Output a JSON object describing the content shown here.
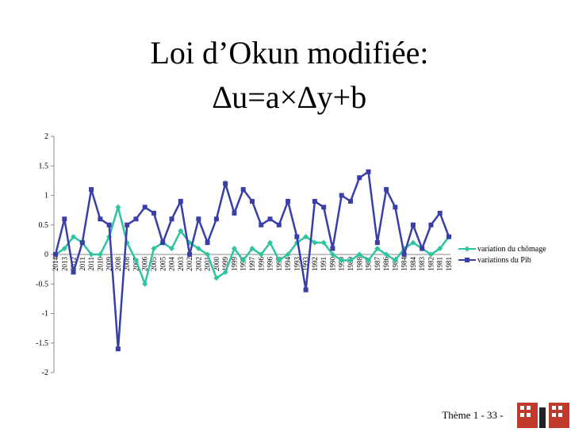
{
  "footer": "Thème 1 - 33 -",
  "chart_data": {
    "type": "line",
    "title": "Loi d’Okun modifiée:",
    "subtitle": "∆u=a×∆y+b",
    "categories": [
      "2014",
      "2013",
      "2012",
      "2011",
      "2011",
      "2010",
      "2009",
      "2008",
      "2008",
      "2007",
      "2006",
      "2005",
      "2005",
      "2004",
      "2003",
      "2002",
      "2002",
      "2001",
      "2000",
      "1999",
      "1999",
      "1998",
      "1997",
      "1996",
      "1996",
      "1995",
      "1994",
      "1993",
      "1993",
      "1992",
      "1991",
      "1990",
      "1990",
      "1989",
      "1988",
      "1987",
      "1987",
      "1986",
      "1985",
      "1984",
      "1984",
      "1983",
      "1982",
      "1981",
      "1981"
    ],
    "series": [
      {
        "name": "variation du chômage",
        "color": "#2ec4a0",
        "marker": "diamond",
        "values": [
          0.0,
          0.1,
          0.3,
          0.2,
          0.0,
          0.0,
          0.3,
          0.8,
          0.2,
          -0.1,
          -0.5,
          0.1,
          0.2,
          0.1,
          0.4,
          0.2,
          0.1,
          0.0,
          -0.4,
          -0.3,
          0.1,
          -0.1,
          0.1,
          0.0,
          0.2,
          -0.1,
          0.0,
          0.2,
          0.3,
          0.2,
          0.2,
          0.0,
          -0.1,
          -0.1,
          0.0,
          -0.1,
          0.1,
          0.0,
          -0.1,
          0.1,
          0.2,
          0.1,
          0.0,
          0.1,
          0.3
        ]
      },
      {
        "name": "variations du Pib",
        "color": "#3a3fa8",
        "marker": "square",
        "values": [
          0.0,
          0.6,
          -0.3,
          0.2,
          1.1,
          0.6,
          0.5,
          -1.6,
          0.5,
          0.6,
          0.8,
          0.7,
          0.2,
          0.6,
          0.9,
          0.0,
          0.6,
          0.2,
          0.6,
          1.2,
          0.7,
          1.1,
          0.9,
          0.5,
          0.6,
          0.5,
          0.9,
          0.3,
          -0.6,
          0.9,
          0.8,
          0.1,
          1.0,
          0.9,
          1.3,
          1.4,
          0.2,
          1.1,
          0.8,
          0.0,
          0.5,
          0.1,
          0.5,
          0.7,
          0.3
        ]
      }
    ],
    "ylim": [
      -2,
      2
    ],
    "yticks": [
      2,
      1.5,
      1,
      0.5,
      0,
      -0.5,
      -1,
      -1.5,
      -2
    ],
    "grid": false,
    "legend": "right"
  }
}
